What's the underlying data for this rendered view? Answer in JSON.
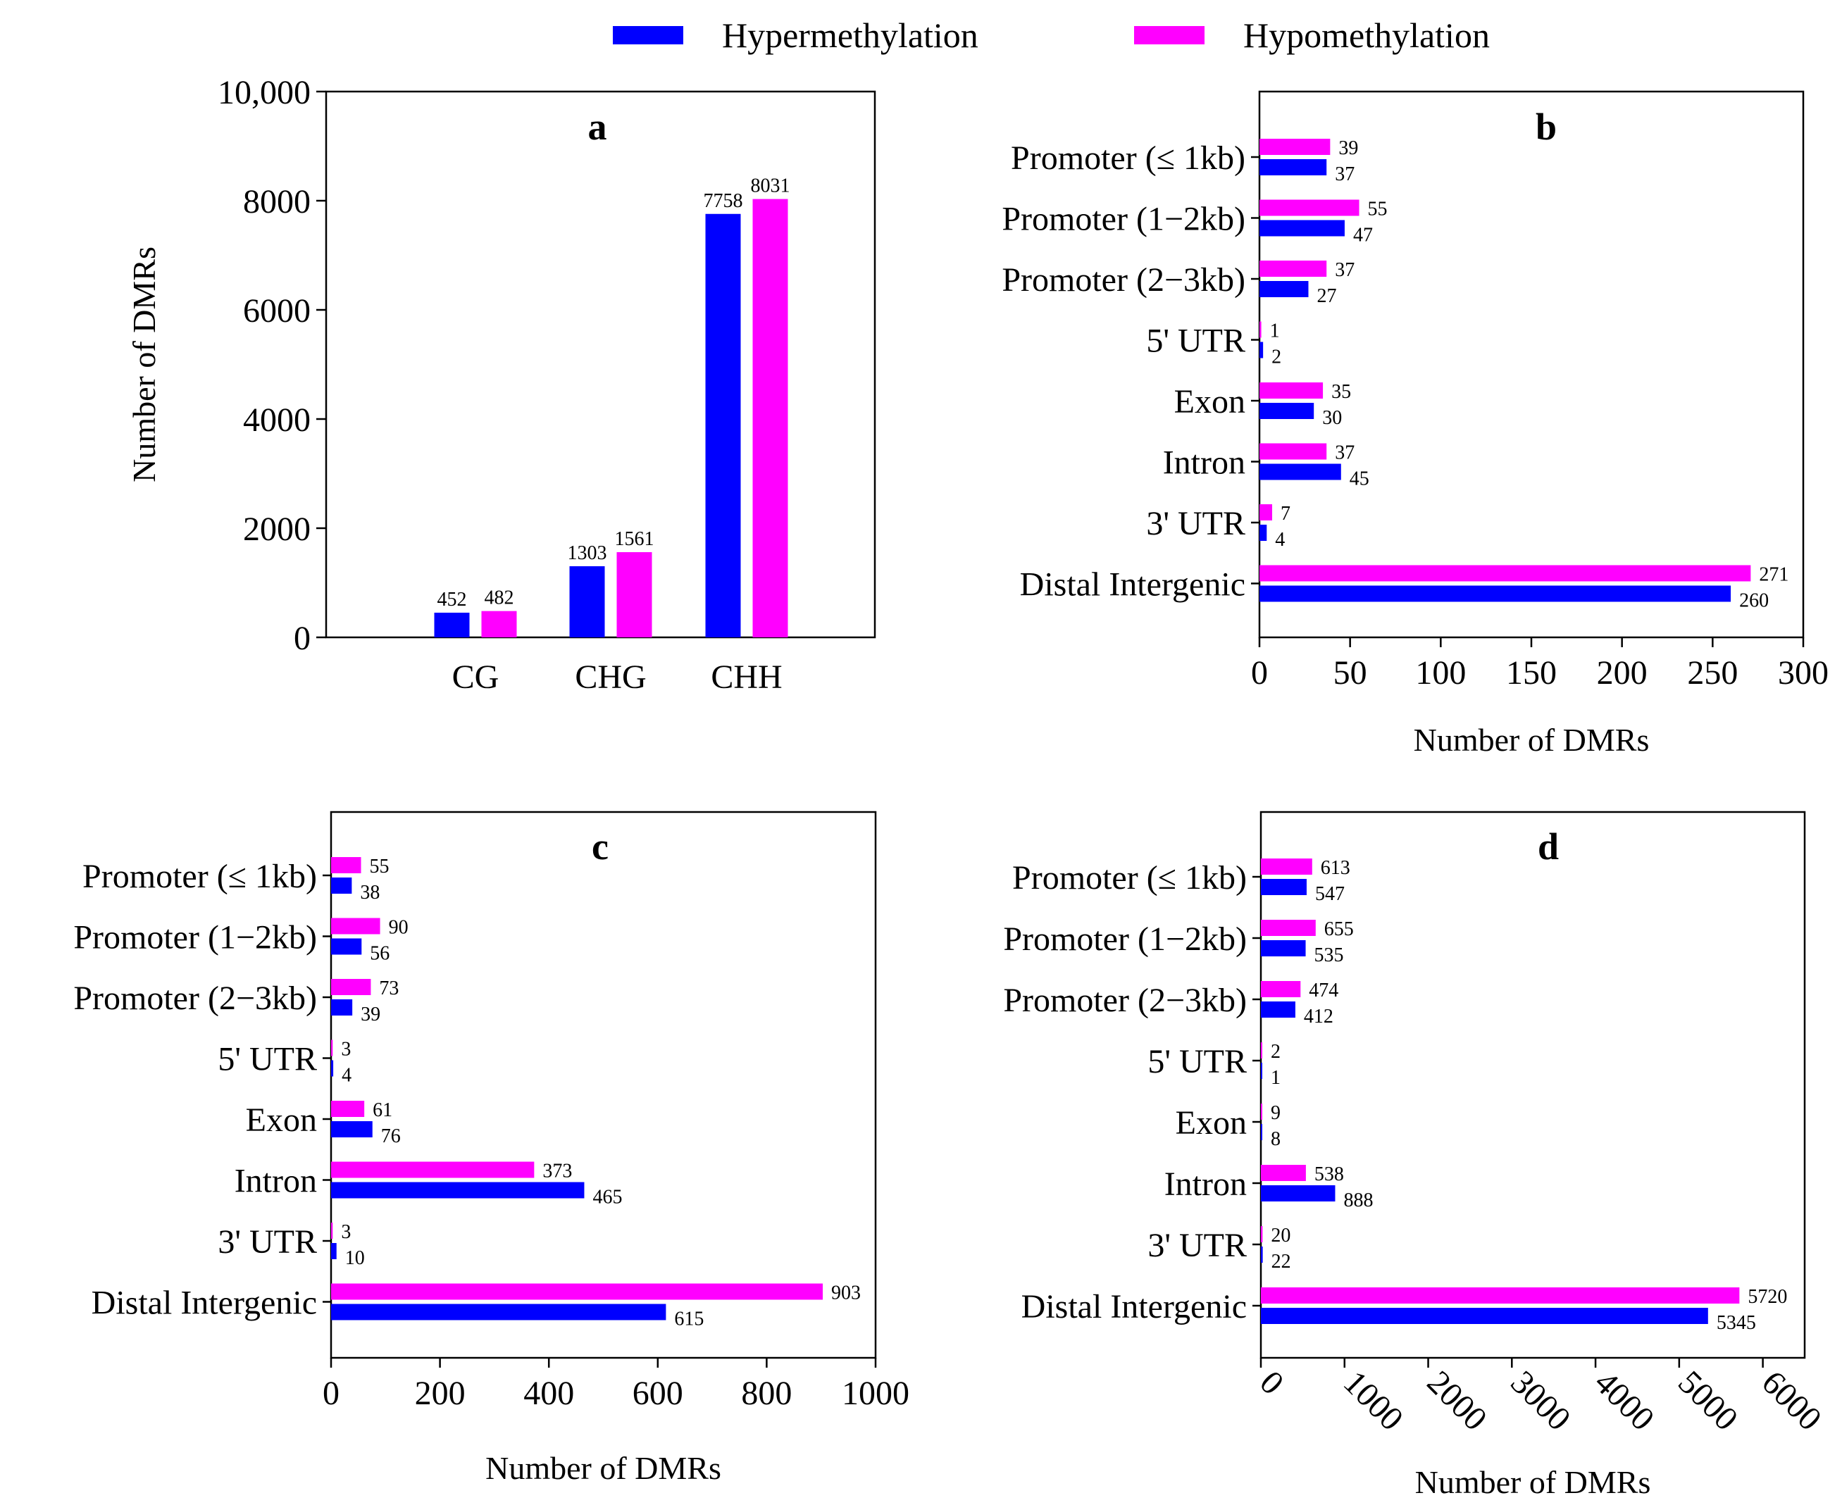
{
  "legend": {
    "hyper_label": "Hypermethylation",
    "hypo_label": "Hypomethylation"
  },
  "colors": {
    "hyper": "#0000ff",
    "hypo": "#ff00ff"
  },
  "chart_data": [
    {
      "panel": "a",
      "type": "bar",
      "orientation": "vertical",
      "title": "a",
      "categories": [
        "CG",
        "CHG",
        "CHH"
      ],
      "series": [
        {
          "name": "Hypermethylation",
          "values": [
            452,
            1303,
            7758
          ]
        },
        {
          "name": "Hypomethylation",
          "values": [
            482,
            1561,
            8031
          ]
        }
      ],
      "ylabel": "Number of DMRs",
      "xlabel": "",
      "ylim": [
        0,
        10000
      ],
      "ticks": [
        0,
        2000,
        4000,
        6000,
        8000,
        10000
      ],
      "tick_labels": [
        "0",
        "2000",
        "4000",
        "6000",
        "8000",
        "10,000"
      ]
    },
    {
      "panel": "b",
      "type": "bar",
      "orientation": "horizontal",
      "title": "b",
      "categories": [
        "Promoter (≤ 1kb)",
        "Promoter (1−2kb)",
        "Promoter (2−3kb)",
        "5' UTR",
        "Exon",
        "Intron",
        "3' UTR",
        "Distal Intergenic"
      ],
      "series": [
        {
          "name": "Hypermethylation",
          "values": [
            37,
            47,
            27,
            2,
            30,
            45,
            4,
            260
          ]
        },
        {
          "name": "Hypomethylation",
          "values": [
            39,
            55,
            37,
            1,
            35,
            37,
            7,
            271
          ]
        }
      ],
      "xlabel": "Number of DMRs",
      "xlim": [
        0,
        300
      ],
      "ticks": [
        0,
        50,
        100,
        150,
        200,
        250,
        300
      ],
      "tick_labels": [
        "0",
        "50",
        "100",
        "150",
        "200",
        "250",
        "300"
      ]
    },
    {
      "panel": "c",
      "type": "bar",
      "orientation": "horizontal",
      "title": "c",
      "categories": [
        "Promoter (≤ 1kb)",
        "Promoter (1−2kb)",
        "Promoter (2−3kb)",
        "5' UTR",
        "Exon",
        "Intron",
        "3' UTR",
        "Distal Intergenic"
      ],
      "series": [
        {
          "name": "Hypermethylation",
          "values": [
            38,
            56,
            39,
            4,
            76,
            465,
            10,
            615
          ]
        },
        {
          "name": "Hypomethylation",
          "values": [
            55,
            90,
            73,
            3,
            61,
            373,
            3,
            903
          ]
        }
      ],
      "xlabel": "Number of DMRs",
      "xlim": [
        0,
        1000
      ],
      "ticks": [
        0,
        200,
        400,
        600,
        800,
        1000
      ],
      "tick_labels": [
        "0",
        "200",
        "400",
        "600",
        "800",
        "1000"
      ]
    },
    {
      "panel": "d",
      "type": "bar",
      "orientation": "horizontal",
      "title": "d",
      "categories": [
        "Promoter (≤ 1kb)",
        "Promoter (1−2kb)",
        "Promoter (2−3kb)",
        "5' UTR",
        "Exon",
        "Intron",
        "3' UTR",
        "Distal Intergenic"
      ],
      "series": [
        {
          "name": "Hypermethylation",
          "values": [
            547,
            535,
            412,
            1,
            8,
            888,
            22,
            5345
          ]
        },
        {
          "name": "Hypomethylation",
          "values": [
            613,
            655,
            474,
            2,
            9,
            538,
            20,
            5720
          ]
        }
      ],
      "xlabel": "Number of DMRs",
      "xlim": [
        0,
        6500
      ],
      "ticks": [
        0,
        1000,
        2000,
        3000,
        4000,
        5000,
        6000
      ],
      "tick_labels": [
        "0",
        "1000",
        "2000",
        "3000",
        "4000",
        "5000",
        "6000"
      ],
      "tick_rotation": 45
    }
  ]
}
